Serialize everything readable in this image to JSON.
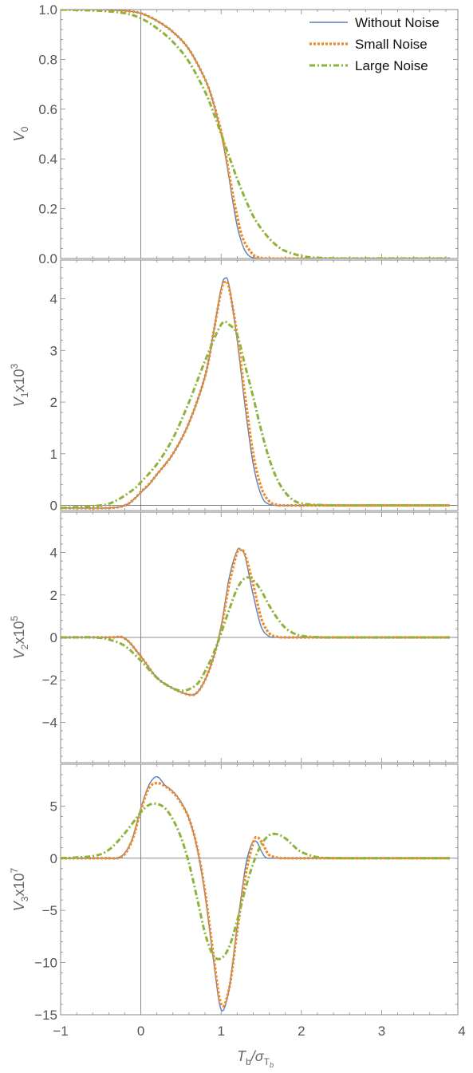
{
  "colors": {
    "without_noise": "#5B7FB8",
    "small_noise": "#F08A24",
    "large_noise": "#8DB33B",
    "frame": "#888888",
    "axis": "#666666"
  },
  "legend": [
    {
      "key": "without_noise",
      "label": "Without Noise",
      "style": "solid"
    },
    {
      "key": "small_noise",
      "label": "Small Noise",
      "style": "dotted"
    },
    {
      "key": "large_noise",
      "label": "Large Noise",
      "style": "dashdot"
    }
  ],
  "x_axis": {
    "label": "T_b/σ_Tb",
    "label_parts": {
      "main": "T",
      "main_sub": "b",
      "slash": "/",
      "sigma": "σ",
      "sigma_sub": "T",
      "sigma_subsub": "b"
    },
    "range": [
      -1,
      3.95
    ],
    "ticks": [
      -1,
      0,
      1,
      2,
      3,
      4
    ],
    "tick_labels": [
      "−1",
      "0",
      "1",
      "2",
      "3",
      "4"
    ]
  },
  "chart_data": [
    {
      "type": "line",
      "ylabel": "V_0",
      "ylabel_parts": {
        "main": "V",
        "sub": "0",
        "suffix": "",
        "sup": ""
      },
      "ylim": [
        0,
        1.0
      ],
      "yticks": [
        0,
        0.2,
        0.4,
        0.6,
        0.8,
        1.0
      ],
      "ytick_labels": [
        "0.0",
        "0.2",
        "0.4",
        "0.6",
        "0.8",
        "1.0"
      ],
      "series": [
        {
          "key": "without_noise",
          "name": "Without Noise",
          "x": [
            -1,
            -0.5,
            -0.2,
            0,
            0.2,
            0.4,
            0.6,
            0.8,
            0.9,
            1.0,
            1.05,
            1.1,
            1.15,
            1.2,
            1.25,
            1.3,
            1.35,
            1.4,
            1.5,
            1.6,
            2.0,
            3.0,
            3.85
          ],
          "y": [
            1,
            1,
            0.995,
            0.985,
            0.955,
            0.91,
            0.84,
            0.72,
            0.63,
            0.5,
            0.42,
            0.32,
            0.22,
            0.13,
            0.07,
            0.03,
            0.01,
            0.003,
            0,
            0,
            0,
            0,
            0
          ]
        },
        {
          "key": "small_noise",
          "name": "Small Noise",
          "x": [
            -1,
            -0.5,
            -0.2,
            0,
            0.2,
            0.4,
            0.6,
            0.8,
            0.9,
            1.0,
            1.05,
            1.1,
            1.15,
            1.2,
            1.25,
            1.3,
            1.35,
            1.4,
            1.45,
            1.5,
            1.6,
            2.0,
            3.0,
            3.85
          ],
          "y": [
            1,
            1,
            0.995,
            0.985,
            0.955,
            0.91,
            0.84,
            0.72,
            0.63,
            0.51,
            0.43,
            0.34,
            0.25,
            0.17,
            0.1,
            0.06,
            0.035,
            0.015,
            0.006,
            0.002,
            0,
            0,
            0,
            0
          ]
        },
        {
          "key": "large_noise",
          "name": "Large Noise",
          "x": [
            -1,
            -0.5,
            -0.2,
            0,
            0.2,
            0.4,
            0.6,
            0.8,
            0.9,
            1.0,
            1.1,
            1.2,
            1.3,
            1.4,
            1.5,
            1.6,
            1.7,
            1.8,
            2.0,
            2.2,
            2.5,
            3.0,
            3.85
          ],
          "y": [
            1,
            0.995,
            0.985,
            0.965,
            0.925,
            0.87,
            0.79,
            0.67,
            0.59,
            0.5,
            0.41,
            0.32,
            0.24,
            0.17,
            0.12,
            0.08,
            0.05,
            0.03,
            0.01,
            0.003,
            0,
            0,
            0
          ]
        }
      ]
    },
    {
      "type": "line",
      "ylabel": "V_1x10^3",
      "ylabel_parts": {
        "main": "V",
        "sub": "1",
        "suffix": "x10",
        "sup": "3"
      },
      "ylim": [
        -0.1,
        4.75
      ],
      "yticks": [
        0,
        1,
        2,
        3,
        4
      ],
      "ytick_labels": [
        "0",
        "1",
        "2",
        "3",
        "4"
      ],
      "series": [
        {
          "key": "without_noise",
          "name": "Without Noise",
          "x": [
            -1,
            -0.4,
            -0.2,
            -0.1,
            0,
            0.1,
            0.2,
            0.4,
            0.6,
            0.8,
            0.9,
            1.0,
            1.05,
            1.1,
            1.2,
            1.3,
            1.4,
            1.5,
            1.6,
            1.8,
            2.0,
            3.0,
            3.85
          ],
          "y": [
            -0.05,
            -0.05,
            0,
            0.1,
            0.25,
            0.4,
            0.6,
            1.0,
            1.6,
            2.5,
            3.3,
            4.2,
            4.4,
            4.25,
            3.2,
            1.9,
            0.8,
            0.2,
            0.02,
            0,
            0,
            0,
            0
          ]
        },
        {
          "key": "small_noise",
          "name": "Small Noise",
          "x": [
            -1,
            -0.4,
            -0.2,
            -0.1,
            0,
            0.1,
            0.2,
            0.4,
            0.6,
            0.8,
            0.9,
            1.0,
            1.05,
            1.1,
            1.2,
            1.3,
            1.4,
            1.5,
            1.6,
            1.7,
            1.8,
            2.0,
            3.0,
            3.85
          ],
          "y": [
            -0.05,
            -0.05,
            0,
            0.1,
            0.26,
            0.41,
            0.6,
            1.0,
            1.6,
            2.5,
            3.3,
            4.15,
            4.33,
            4.2,
            3.3,
            2.1,
            1.0,
            0.35,
            0.08,
            0.01,
            0,
            0,
            0,
            0
          ]
        },
        {
          "key": "large_noise",
          "name": "Large Noise",
          "x": [
            -1,
            -0.5,
            -0.3,
            -0.1,
            0,
            0.2,
            0.4,
            0.6,
            0.8,
            1.0,
            1.1,
            1.2,
            1.3,
            1.4,
            1.5,
            1.6,
            1.7,
            1.8,
            1.9,
            2.0,
            2.2,
            2.5,
            3.0,
            3.85
          ],
          "y": [
            -0.05,
            0,
            0.1,
            0.3,
            0.45,
            0.8,
            1.3,
            2.0,
            2.8,
            3.5,
            3.5,
            3.3,
            2.7,
            2.1,
            1.45,
            0.9,
            0.5,
            0.25,
            0.1,
            0.04,
            0.01,
            0,
            0,
            0
          ]
        }
      ]
    },
    {
      "type": "line",
      "ylabel": "V_2x10^5",
      "ylabel_parts": {
        "main": "V",
        "sub": "2",
        "suffix": "x10",
        "sup": "5"
      },
      "ylim": [
        -5.9,
        5.9
      ],
      "yticks": [
        -4,
        -2,
        0,
        2,
        4
      ],
      "ytick_labels": [
        "−4",
        "−2",
        "0",
        "2",
        "4"
      ],
      "series": [
        {
          "key": "without_noise",
          "name": "Without Noise",
          "x": [
            -1,
            -0.4,
            -0.2,
            0,
            0.2,
            0.4,
            0.6,
            0.7,
            0.8,
            0.9,
            1.0,
            1.1,
            1.2,
            1.25,
            1.3,
            1.4,
            1.5,
            1.6,
            1.7,
            2.0,
            3.0,
            3.85
          ],
          "y": [
            0,
            0,
            -0.05,
            -0.9,
            -1.9,
            -2.4,
            -2.7,
            -2.6,
            -2.0,
            -1.0,
            0.5,
            2.8,
            4.1,
            4.1,
            3.8,
            2.0,
            0.5,
            0.05,
            0,
            0,
            0,
            0
          ]
        },
        {
          "key": "small_noise",
          "name": "Small Noise",
          "x": [
            -1,
            -0.4,
            -0.2,
            0,
            0.2,
            0.4,
            0.6,
            0.7,
            0.8,
            0.9,
            1.0,
            1.1,
            1.2,
            1.25,
            1.3,
            1.4,
            1.5,
            1.6,
            1.7,
            1.8,
            2.0,
            3.0,
            3.85
          ],
          "y": [
            0,
            0,
            -0.05,
            -0.9,
            -1.9,
            -2.4,
            -2.7,
            -2.6,
            -2.0,
            -1.0,
            0.4,
            2.5,
            4.0,
            4.1,
            3.9,
            2.5,
            0.9,
            0.2,
            0.03,
            0,
            0,
            0,
            0
          ]
        },
        {
          "key": "large_noise",
          "name": "Large Noise",
          "x": [
            -1,
            -0.6,
            -0.4,
            -0.2,
            0,
            0.2,
            0.4,
            0.55,
            0.7,
            0.8,
            0.9,
            1.0,
            1.1,
            1.2,
            1.3,
            1.4,
            1.5,
            1.6,
            1.7,
            1.8,
            1.9,
            2.0,
            2.2,
            2.5,
            3.0,
            3.85
          ],
          "y": [
            0,
            0,
            -0.1,
            -0.4,
            -1.1,
            -1.9,
            -2.4,
            -2.5,
            -2.2,
            -1.6,
            -0.8,
            0.2,
            1.3,
            2.3,
            2.8,
            2.7,
            2.2,
            1.5,
            0.9,
            0.45,
            0.2,
            0.08,
            0.01,
            0,
            0,
            0
          ]
        }
      ]
    },
    {
      "type": "line",
      "ylabel": "V_3x10^7",
      "ylabel_parts": {
        "main": "V",
        "sub": "3",
        "suffix": "x10",
        "sup": "7"
      },
      "ylim": [
        -15,
        9
      ],
      "yticks": [
        -15,
        -10,
        -5,
        0,
        5
      ],
      "ytick_labels": [
        "−15",
        "−10",
        "−5",
        "0",
        "5"
      ],
      "series": [
        {
          "key": "without_noise",
          "name": "Without Noise",
          "x": [
            -1,
            -0.4,
            -0.3,
            -0.2,
            -0.1,
            0,
            0.1,
            0.2,
            0.3,
            0.4,
            0.5,
            0.6,
            0.7,
            0.8,
            0.9,
            1.0,
            1.1,
            1.2,
            1.3,
            1.35,
            1.4,
            1.45,
            1.5,
            1.55,
            1.6,
            1.7,
            2.0,
            3.0,
            3.85
          ],
          "y": [
            0,
            0,
            0,
            0.5,
            2.0,
            4.8,
            7.0,
            7.8,
            7.0,
            6.4,
            5.4,
            3.8,
            1.0,
            -3.5,
            -9.5,
            -14.5,
            -12.5,
            -6.5,
            -1.0,
            0.7,
            1.6,
            1.5,
            0.7,
            0.1,
            0,
            0,
            0,
            0,
            0
          ]
        },
        {
          "key": "small_noise",
          "name": "Small Noise",
          "x": [
            -1,
            -0.4,
            -0.3,
            -0.2,
            -0.1,
            0,
            0.1,
            0.2,
            0.3,
            0.4,
            0.5,
            0.6,
            0.7,
            0.8,
            0.9,
            1.0,
            1.1,
            1.2,
            1.3,
            1.4,
            1.45,
            1.5,
            1.55,
            1.6,
            1.7,
            1.8,
            2.0,
            3.0,
            3.85
          ],
          "y": [
            0,
            0,
            0,
            0.4,
            1.9,
            4.6,
            6.7,
            7.2,
            6.9,
            6.3,
            5.3,
            3.8,
            1.1,
            -3.2,
            -9.0,
            -14.0,
            -12.5,
            -7.0,
            -1.8,
            1.5,
            2.0,
            1.6,
            0.9,
            0.3,
            0.05,
            0,
            0,
            0,
            0
          ]
        },
        {
          "key": "large_noise",
          "name": "Large Noise",
          "x": [
            -1,
            -0.6,
            -0.4,
            -0.2,
            0,
            0.1,
            0.2,
            0.3,
            0.4,
            0.5,
            0.6,
            0.7,
            0.8,
            0.9,
            1.0,
            1.1,
            1.2,
            1.3,
            1.4,
            1.5,
            1.6,
            1.7,
            1.8,
            1.9,
            2.0,
            2.2,
            2.5,
            3.0,
            3.85
          ],
          "y": [
            0,
            0.2,
            0.8,
            2.4,
            4.4,
            5.1,
            5.2,
            4.8,
            3.7,
            2.0,
            -0.5,
            -3.8,
            -7.2,
            -9.3,
            -9.6,
            -8.5,
            -6.0,
            -3.0,
            -0.5,
            1.3,
            2.2,
            2.3,
            1.9,
            1.2,
            0.6,
            0.1,
            0,
            0,
            0
          ]
        }
      ]
    }
  ]
}
